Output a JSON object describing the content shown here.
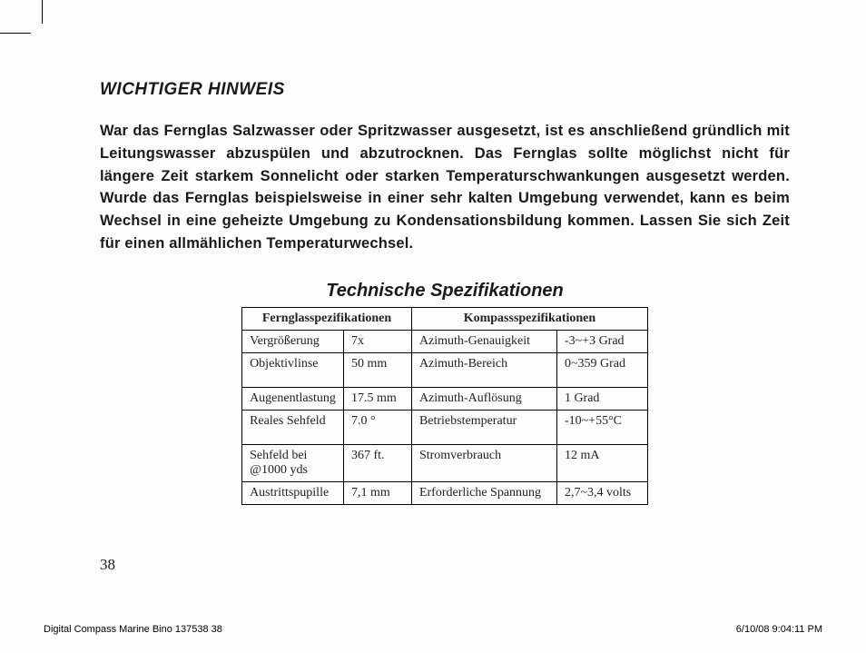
{
  "heading": "WICHTIGER HINWEIS",
  "body": "War das Fernglas Salzwasser oder Spritzwasser ausgesetzt, ist es anschließend gründlich mit Leitungswasser abzuspülen und abzutrocknen. Das Fernglas sollte möglichst nicht für längere Zeit starkem Sonnelicht oder starken Temperaturschwankungen ausgesetzt werden. Wurde das Fernglas beispielsweise in einer sehr kalten Umgebung verwendet, kann es beim Wechsel in eine geheizte Umgebung zu Kondensationsbildung kommen. Lassen Sie sich Zeit für einen allmählichen Temperaturwechsel.",
  "subheading": "Technische Spezifikationen",
  "table": {
    "header_left": "Fernglasspezifikationen",
    "header_right": "Kompassspezifikationen",
    "rows": [
      {
        "a": "Vergrößerung",
        "b": "7x",
        "c": "Azimuth-Genauigkeit",
        "d": "-3~+3 Grad",
        "tall": false
      },
      {
        "a": "Objektivlinse",
        "b": "50 mm",
        "c": "Azimuth-Bereich",
        "d": "0~359 Grad",
        "tall": true
      },
      {
        "a": "Augenentlastung",
        "b": "17.5 mm",
        "c": "Azimuth-Auflösung",
        "d": "1 Grad",
        "tall": false
      },
      {
        "a": "Reales Sehfeld",
        "b": "7.0 °",
        "c": "Betriebstemperatur",
        "d": "-10~+55°C",
        "tall": true
      },
      {
        "a": "Sehfeld bei @1000 yds",
        "b": "367 ft.",
        "c": "Stromverbrauch",
        "d": "12 mA",
        "tall": true
      },
      {
        "a": "Austrittspupille",
        "b": "7,1 mm",
        "c": " Erforderliche Spannung",
        "d": "2,7~3,4 volts",
        "tall": false
      }
    ]
  },
  "page_number": "38",
  "footer_left": "Digital Compass Marine Bino 137538   38",
  "footer_right": "6/10/08   9:04:11 PM"
}
